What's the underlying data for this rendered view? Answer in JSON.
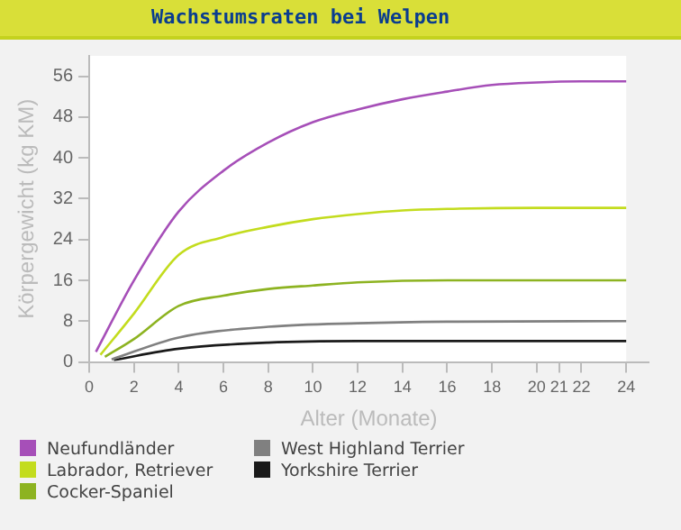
{
  "chart_data": {
    "type": "line",
    "title": "Wachstumsraten bei Welpen",
    "xlabel": "Alter (Monate)",
    "ylabel": "Körpergewicht (kg KM)",
    "xlim": [
      0,
      25
    ],
    "xticks": [
      0,
      2,
      4,
      6,
      8,
      10,
      12,
      14,
      16,
      18,
      20,
      21,
      22,
      24
    ],
    "ylim": [
      0,
      60
    ],
    "yticks": [
      0,
      8,
      16,
      24,
      32,
      40,
      48,
      56
    ],
    "grid": false,
    "legend": "bottom left",
    "marker": "none",
    "line_style": "solid",
    "series": [
      {
        "name": "Neufundländer",
        "color": "#a64fb8",
        "x": [
          0.3,
          2,
          4,
          6,
          8,
          10,
          12,
          14,
          16,
          18,
          20,
          22,
          24
        ],
        "values": [
          2,
          16,
          29.5,
          37.5,
          43,
          47,
          49.5,
          51.5,
          53,
          54.3,
          54.8,
          55,
          55
        ]
      },
      {
        "name": "Labrador, Retriever",
        "color": "#c3dc1e",
        "x": [
          0.5,
          2,
          4,
          6,
          8,
          10,
          12,
          14,
          16,
          20,
          24
        ],
        "values": [
          1.4,
          9.5,
          21,
          24.5,
          26.5,
          28,
          29,
          29.7,
          30,
          30.2,
          30.2
        ]
      },
      {
        "name": "Cocker-Spaniel",
        "color": "#8db321",
        "x": [
          0.7,
          2,
          4,
          6,
          8,
          10,
          12,
          16,
          24
        ],
        "values": [
          1,
          4.5,
          11,
          13,
          14.3,
          15,
          15.6,
          16,
          16
        ]
      },
      {
        "name": "West Highland Terrier",
        "color": "#808080",
        "x": [
          1,
          4,
          8,
          12,
          16,
          24
        ],
        "values": [
          0.5,
          4.8,
          6.9,
          7.6,
          7.9,
          8
        ]
      },
      {
        "name": "Yorkshire Terrier",
        "color": "#1a1a1a",
        "x": [
          1.1,
          4,
          8,
          12,
          24
        ],
        "values": [
          0.4,
          2.6,
          3.8,
          4.1,
          4.1
        ]
      }
    ]
  }
}
